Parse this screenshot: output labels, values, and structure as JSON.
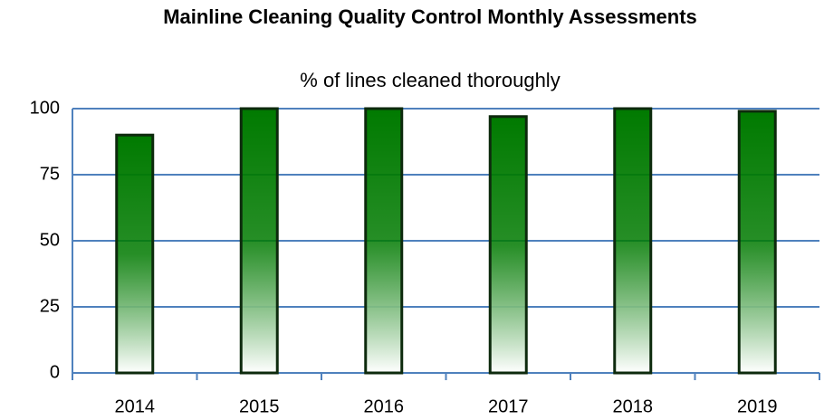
{
  "chart_data": {
    "type": "bar",
    "title": "Mainline Cleaning Quality Control Monthly Assessments",
    "subtitle": "% of lines cleaned thoroughly",
    "categories": [
      "2014",
      "2015",
      "2016",
      "2017",
      "2018",
      "2019"
    ],
    "values": [
      90,
      100,
      100,
      97,
      100,
      99
    ],
    "color": "#007a00",
    "ylim": [
      0,
      100
    ],
    "yticks": [
      0,
      25,
      50,
      75,
      100
    ],
    "grid": true
  }
}
